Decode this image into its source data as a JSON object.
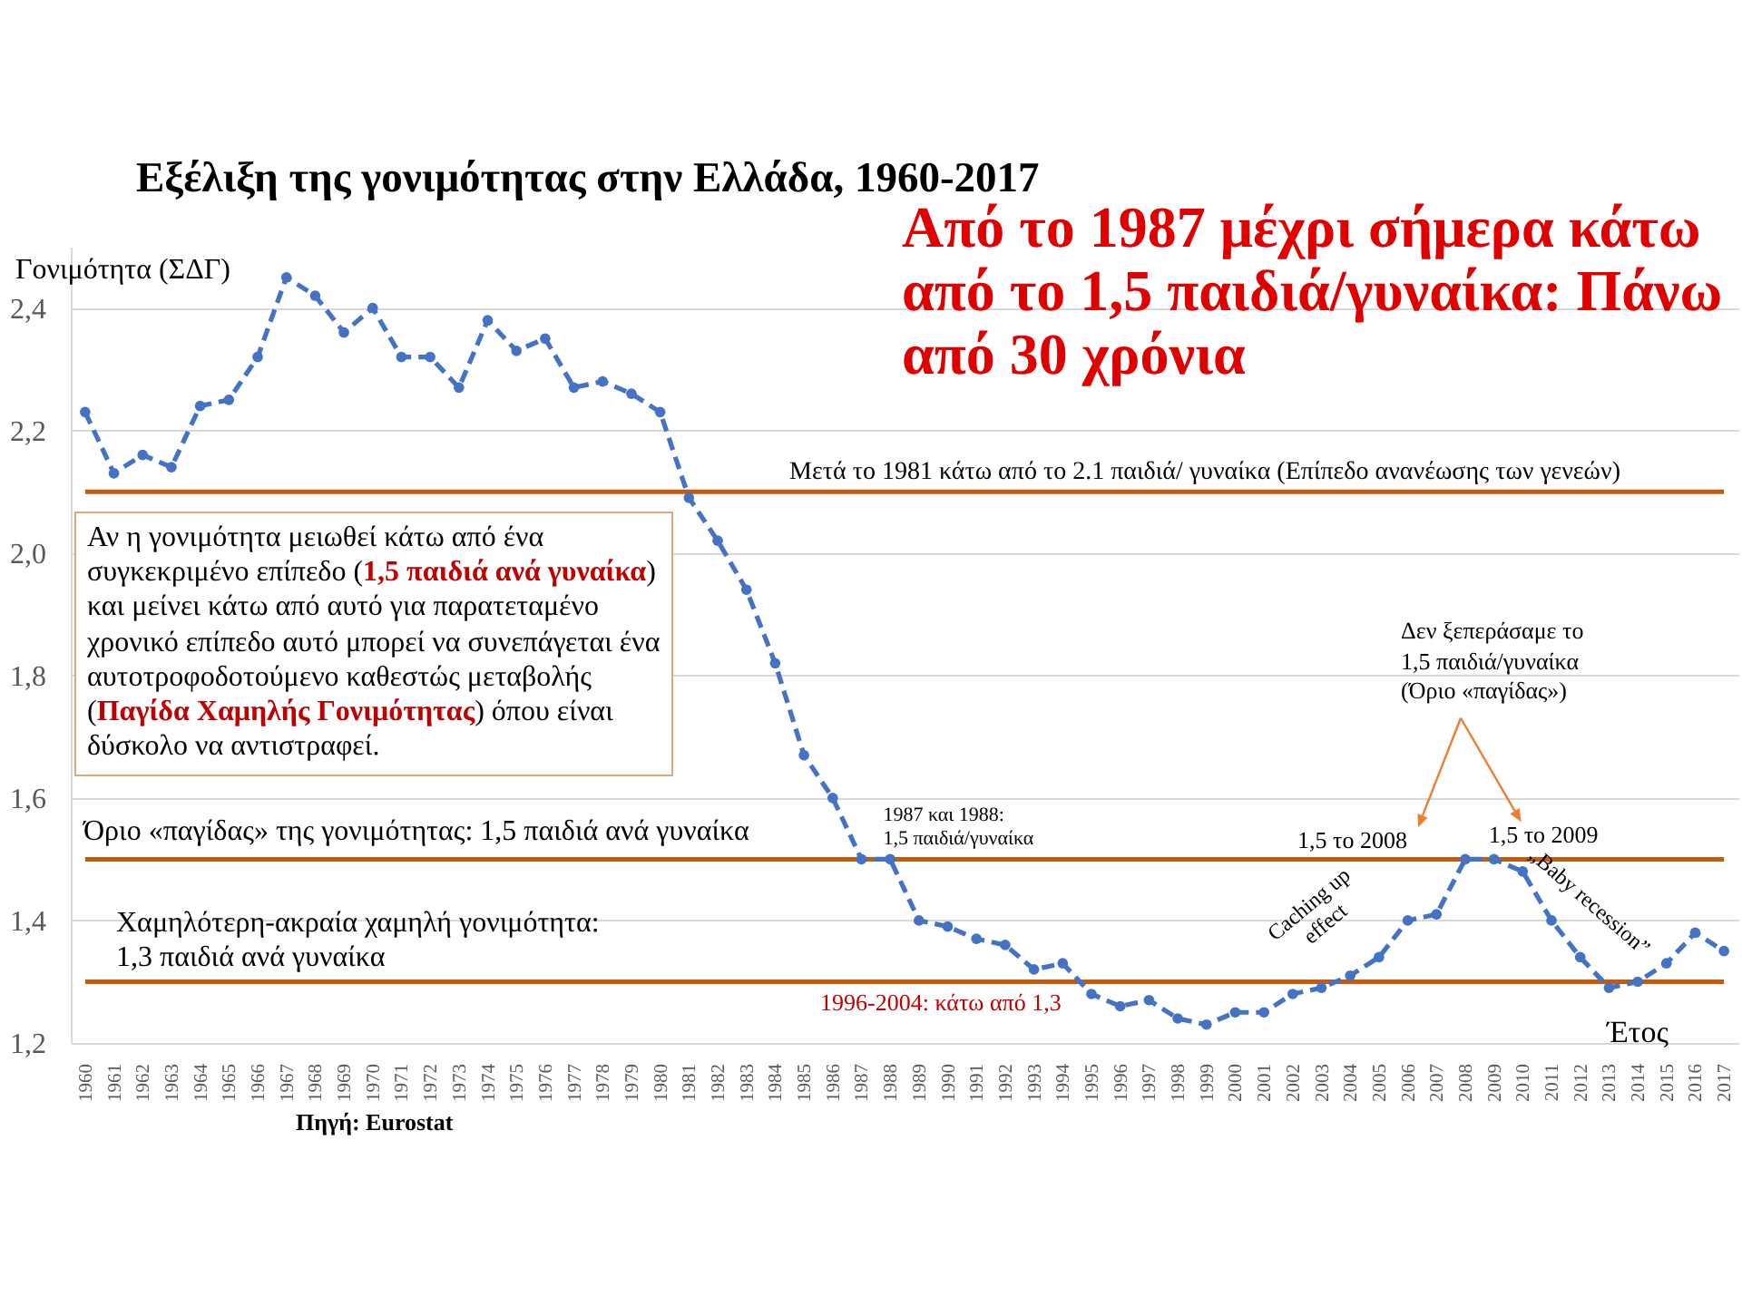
{
  "chart_data": {
    "type": "line",
    "title": "Εξέλιξη της γονιμότητας στην Ελλάδα, 1960-2017",
    "xlabel": "Έτος",
    "ylabel": "Γονιμότητα (ΣΔΓ)",
    "categories": [
      "1960",
      "1961",
      "1962",
      "1963",
      "1964",
      "1965",
      "1966",
      "1967",
      "1968",
      "1969",
      "1970",
      "1971",
      "1972",
      "1973",
      "1974",
      "1975",
      "1976",
      "1977",
      "1978",
      "1979",
      "1980",
      "1981",
      "1982",
      "1983",
      "1984",
      "1985",
      "1986",
      "1987",
      "1988",
      "1989",
      "1990",
      "1991",
      "1992",
      "1993",
      "1994",
      "1995",
      "1996",
      "1997",
      "1998",
      "1999",
      "2000",
      "2001",
      "2002",
      "2003",
      "2004",
      "2005",
      "2006",
      "2007",
      "2008",
      "2009",
      "2010",
      "2011",
      "2012",
      "2013",
      "2014",
      "2015",
      "2016",
      "2017"
    ],
    "series": [
      {
        "color": "#4472c4",
        "values": [
          2.23,
          2.13,
          2.16,
          2.14,
          2.24,
          2.25,
          2.32,
          2.45,
          2.42,
          2.36,
          2.4,
          2.32,
          2.32,
          2.27,
          2.38,
          2.33,
          2.35,
          2.27,
          2.28,
          2.26,
          2.23,
          2.09,
          2.02,
          1.94,
          1.82,
          1.67,
          1.6,
          1.5,
          1.5,
          1.4,
          1.39,
          1.37,
          1.36,
          1.32,
          1.33,
          1.28,
          1.26,
          1.27,
          1.24,
          1.23,
          1.25,
          1.25,
          1.28,
          1.29,
          1.31,
          1.34,
          1.4,
          1.41,
          1.5,
          1.5,
          1.48,
          1.4,
          1.34,
          1.29,
          1.3,
          1.33,
          1.38,
          1.35
        ]
      }
    ],
    "ylim": [
      1.2,
      2.5
    ],
    "yticks": [
      {
        "value": 1.2,
        "label": "1,2"
      },
      {
        "value": 1.4,
        "label": "1,4"
      },
      {
        "value": 1.6,
        "label": "1,6"
      },
      {
        "value": 1.8,
        "label": "1,8"
      },
      {
        "value": 2.0,
        "label": "2,0"
      },
      {
        "value": 2.2,
        "label": "2,2"
      },
      {
        "value": 2.4,
        "label": "2,4"
      }
    ],
    "grid": "y",
    "marker": "circle",
    "line_style": "dashed",
    "ref_lines": [
      {
        "axis": "y",
        "value": 2.1,
        "label": "Μετά το 1981 κάτω από το 2.1 παιδιά/ γυναίκα (Επίπεδο ανανέωσης των γενεών)",
        "color": "#c55a11"
      },
      {
        "axis": "y",
        "value": 1.5,
        "label": "Όριο «παγίδας» της γονιμότητας: 1,5 παιδιά ανά γυναίκα",
        "color": "#c55a11"
      },
      {
        "axis": "y",
        "value": 1.3,
        "label": "Χαμηλότερη-ακραία χαμηλή γονιμότητα:\n1,3 παιδιά ανά γυναίκα",
        "color": "#c55a11"
      }
    ],
    "annotations": [
      "Από το 1987 μέχρι σήμερα κάτω\nαπό το 1,5 παιδιά/γυναίκα: Πάνω\nαπό 30 χρόνια",
      "Αν η γονιμότητα μειωθεί κάτω από ένα\nσυγκεκριμένο επίπεδο (1,5 παιδιά ανά γυναίκα)\nκαι μείνει κάτω από αυτό για παρατεταμένο\nχρονικό επίπεδο αυτό μπορεί να συνεπάγεται ένα\nαυτοτροφοδοτούμενο καθεστώς μεταβολής\n(Παγίδα Χαμηλής Γονιμότητας) όπου είναι\nδύσκολο να αντιστραφεί.",
      {
        "text": "1987 και 1988:\n1,5 παιδιά/γυναίκα",
        "x": "1987",
        "y": 1.5
      },
      {
        "text": "1,5 το 2008",
        "x": "2008",
        "y": 1.5
      },
      {
        "text": "1,5 το 2009",
        "x": "2009",
        "y": 1.5
      },
      "Δεν ξεπεράσαμε το\n1,5 παιδιά/γυναίκα\n(Όριο «παγίδας»)",
      "Caching up\neffect",
      "„Baby recession”",
      "1996-2004: κάτω από 1,3",
      "Πηγή: Eurostat"
    ]
  }
}
